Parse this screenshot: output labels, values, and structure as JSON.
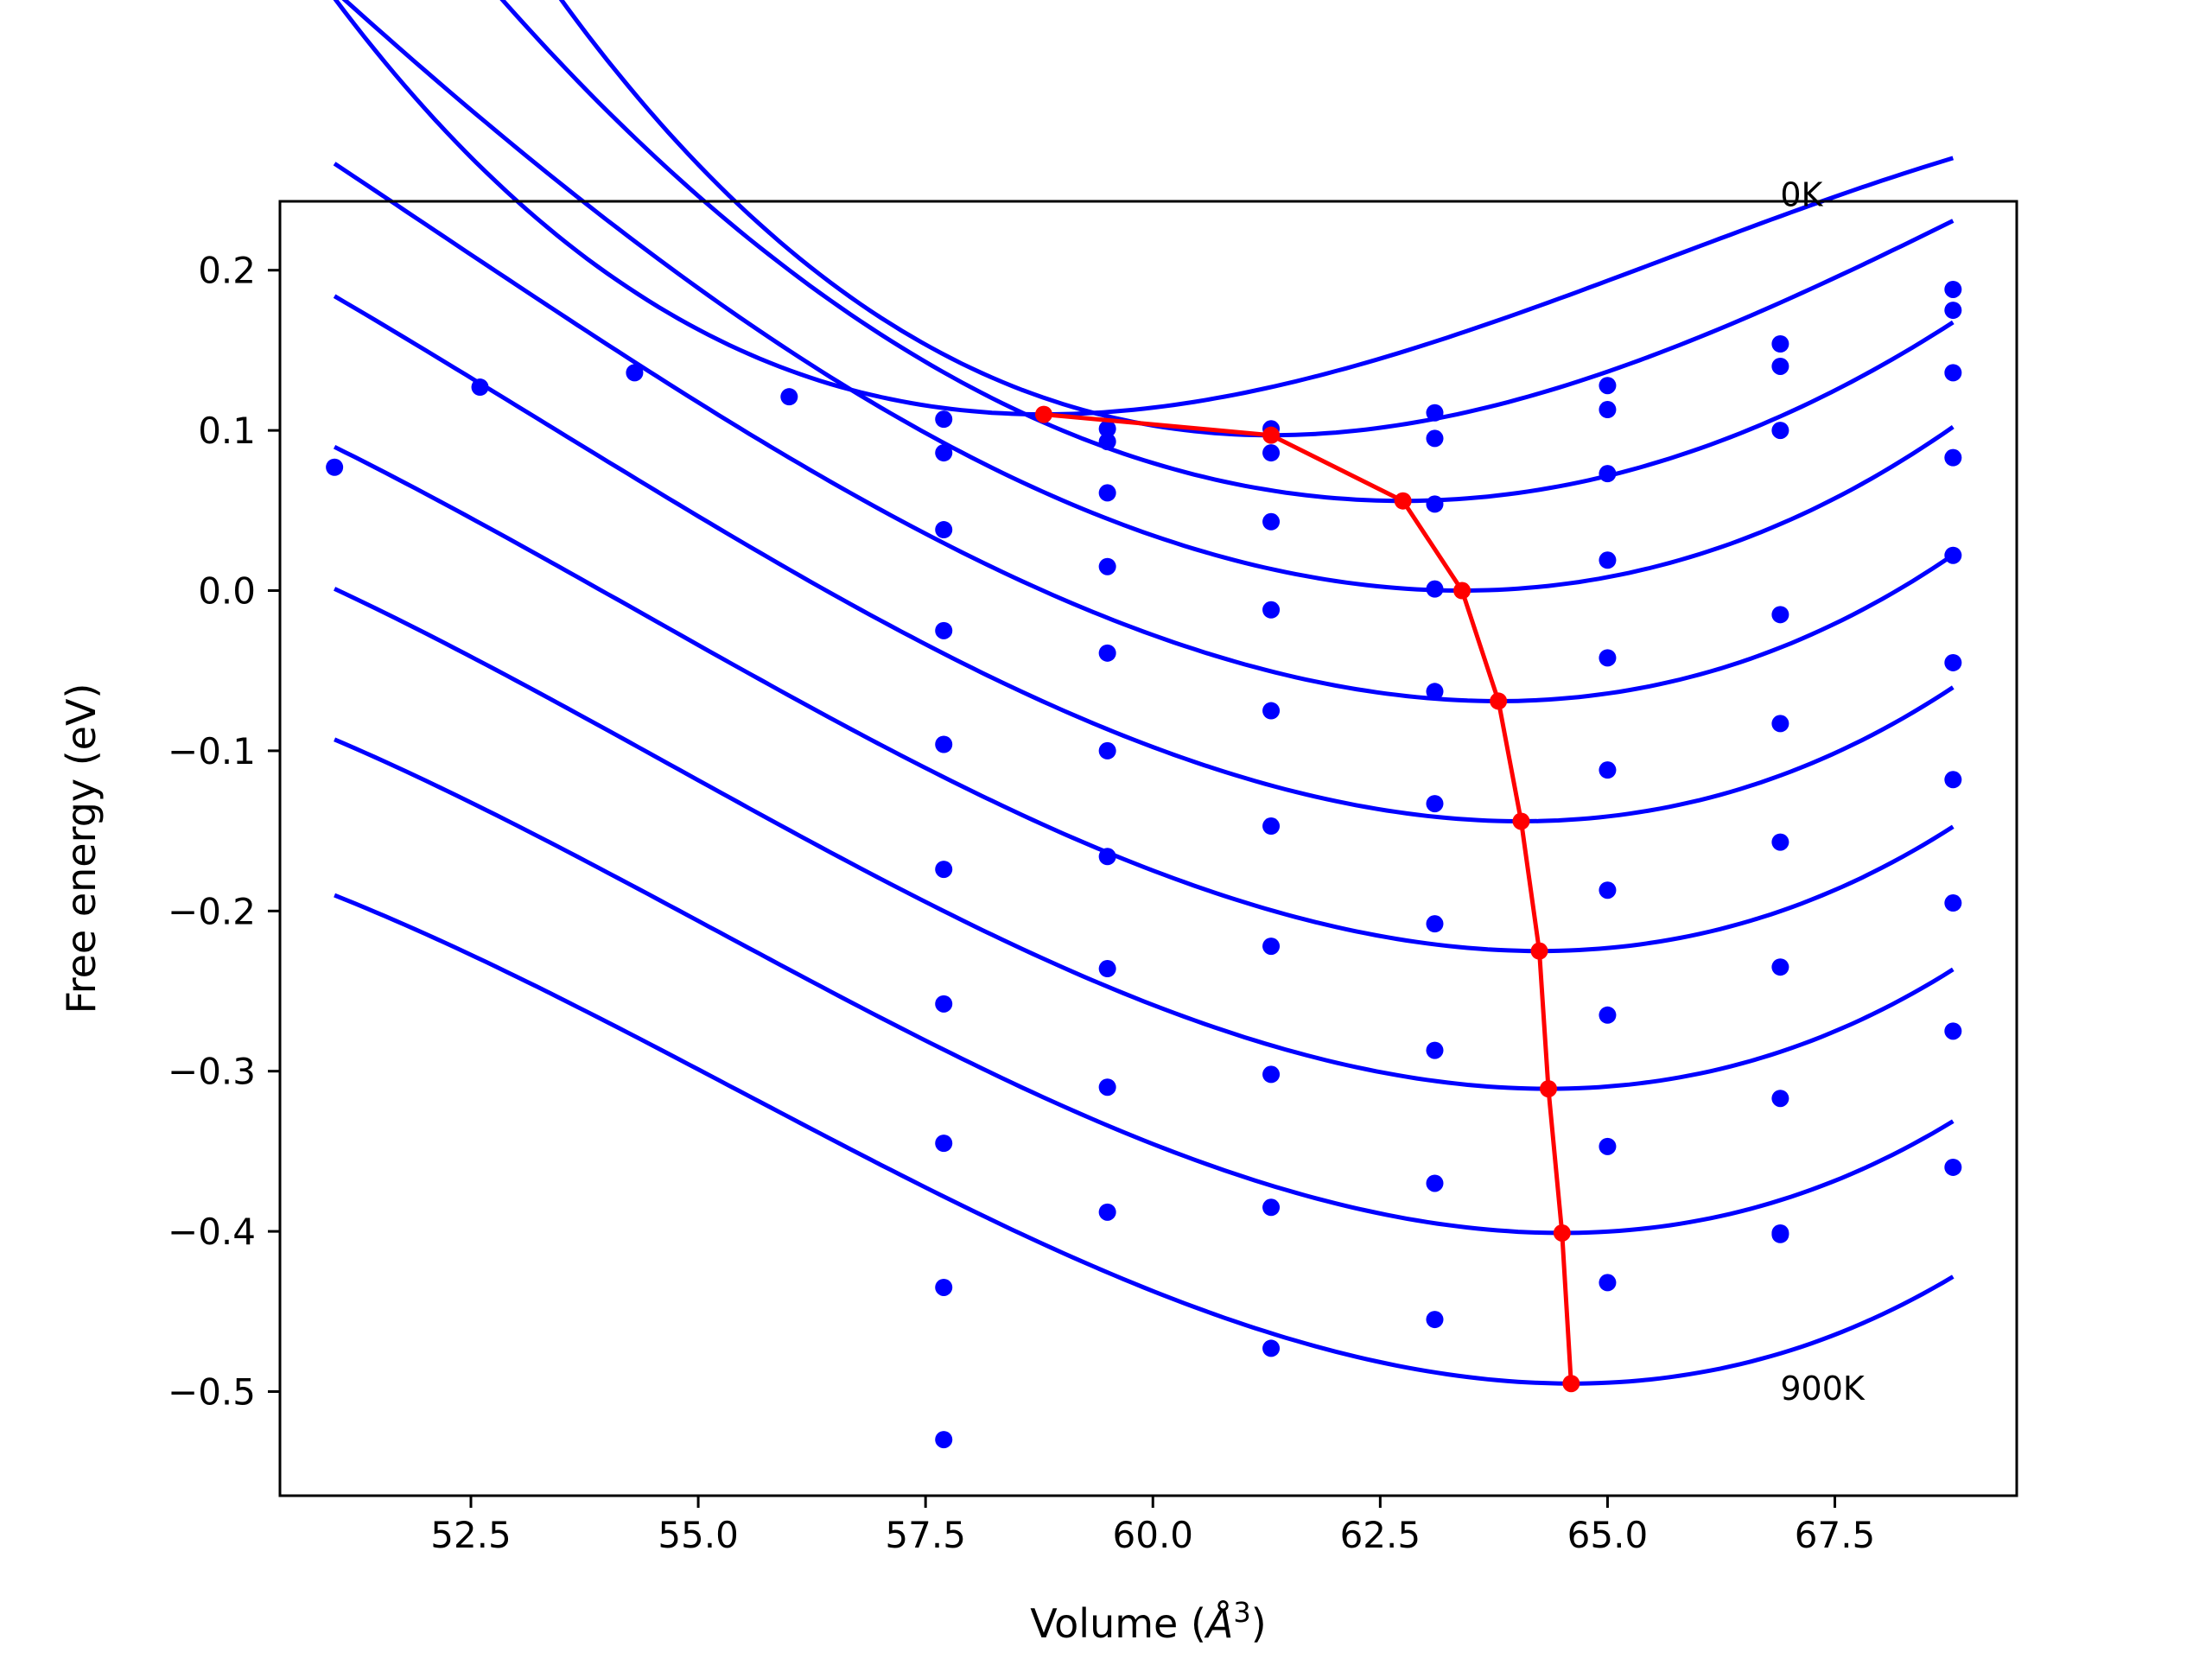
{
  "chart_data": {
    "type": "line",
    "title": "",
    "xlabel": "Volume",
    "xlabel_unit": "Å",
    "xlabel_unit_sup": "3",
    "ylabel": "Free energy (eV)",
    "xlim": [
      50.4,
      69.5
    ],
    "ylim": [
      -0.565,
      0.243
    ],
    "grid": false,
    "xticks": [
      52.5,
      55.0,
      57.5,
      60.0,
      62.5,
      65.0,
      67.5
    ],
    "xtick_labels": [
      "52.5",
      "55.0",
      "57.5",
      "60.0",
      "62.5",
      "65.0",
      "67.5"
    ],
    "yticks": [
      0.2,
      0.1,
      0.0,
      -0.1,
      -0.2,
      -0.3,
      -0.4,
      -0.5
    ],
    "ytick_labels": [
      "0.2",
      "0.1",
      "0.0",
      "−0.1",
      "−0.2",
      "−0.3",
      "−0.4",
      "−0.5"
    ],
    "colors": {
      "fit": "#0000ff",
      "points": "#0000ff",
      "minimum_path": "#ff0000",
      "axes": "#000000"
    },
    "annotations": [
      {
        "text": "0K",
        "x": 66.9,
        "y": 0.24
      },
      {
        "text": "900K",
        "x": 66.9,
        "y": -0.505
      }
    ],
    "volumes": [
      51.0,
      52.6,
      54.3,
      56.0,
      57.7,
      59.5,
      61.3,
      63.1,
      65.0,
      66.9,
      68.8
    ],
    "fit_range": [
      51.0,
      68.8
    ],
    "series": [
      {
        "fit": {
          "v0": 58.8,
          "e0": 0.11,
          "a": 0.0031,
          "b": -0.00015
        },
        "points": [
          [
            51.0,
            0.077
          ],
          [
            52.6,
            0.127
          ],
          [
            54.3,
            0.136
          ],
          [
            56.0,
            0.121
          ],
          [
            57.7,
            0.107
          ],
          [
            59.5,
            0.101
          ],
          [
            61.3,
            0.101
          ],
          [
            63.1,
            0.111
          ],
          [
            65.0,
            0.128
          ],
          [
            66.9,
            0.154
          ],
          [
            68.8,
            0.188
          ]
        ]
      },
      {
        "fit": {
          "v0": 61.3,
          "e0": 0.097,
          "a": 0.0034,
          "b": -0.000136
        },
        "points": [
          [
            57.7,
            0.086
          ],
          [
            59.5,
            0.093
          ],
          [
            61.3,
            0.086
          ],
          [
            63.1,
            0.095
          ],
          [
            65.0,
            0.113
          ],
          [
            66.9,
            0.14
          ],
          [
            68.8,
            0.175
          ]
        ]
      },
      {
        "fit": {
          "v0": 62.75,
          "e0": 0.056,
          "a": 0.0031,
          "b": -9e-06
        },
        "points": [
          [
            57.7,
            0.038
          ],
          [
            59.5,
            0.061
          ],
          [
            61.3,
            0.043
          ],
          [
            63.1,
            0.054
          ],
          [
            65.0,
            0.073
          ],
          [
            66.9,
            0.1
          ],
          [
            68.8,
            0.136
          ]
        ]
      },
      {
        "fit": {
          "v0": 63.4,
          "e0": 0.0,
          "a": 0.00318,
          "b": 6e-05
        },
        "points": [
          [
            57.7,
            -0.025
          ],
          [
            59.5,
            0.015
          ],
          [
            61.3,
            -0.012
          ],
          [
            63.1,
            0.001
          ],
          [
            65.0,
            0.019
          ],
          [
            66.9,
            -0.015
          ],
          [
            68.8,
            0.083
          ]
        ]
      },
      {
        "fit": {
          "v0": 63.8,
          "e0": -0.069,
          "a": 0.0032,
          "b": 9e-05
        },
        "points": [
          [
            57.7,
            -0.096
          ],
          [
            59.5,
            -0.039
          ],
          [
            61.3,
            -0.075
          ],
          [
            63.1,
            -0.063
          ],
          [
            65.0,
            -0.042
          ],
          [
            66.9,
            -0.083
          ],
          [
            68.8,
            0.022
          ]
        ]
      },
      {
        "fit": {
          "v0": 64.05,
          "e0": -0.144,
          "a": 0.00323,
          "b": 0.0001
        },
        "points": [
          [
            57.7,
            -0.174
          ],
          [
            59.5,
            -0.1
          ],
          [
            61.3,
            -0.147
          ],
          [
            63.1,
            -0.133
          ],
          [
            65.0,
            -0.112
          ],
          [
            66.9,
            -0.157
          ],
          [
            68.8,
            -0.045
          ]
        ]
      },
      {
        "fit": {
          "v0": 64.25,
          "e0": -0.225,
          "a": 0.00325,
          "b": 0.00011
        },
        "points": [
          [
            57.7,
            -0.258
          ],
          [
            59.5,
            -0.166
          ],
          [
            61.3,
            -0.222
          ],
          [
            63.1,
            -0.208
          ],
          [
            65.0,
            -0.187
          ],
          [
            66.9,
            -0.235
          ],
          [
            68.8,
            -0.118
          ]
        ]
      },
      {
        "fit": {
          "v0": 64.35,
          "e0": -0.311,
          "a": 0.00326,
          "b": 0.000113
        },
        "points": [
          [
            57.7,
            -0.345
          ],
          [
            59.5,
            -0.236
          ],
          [
            61.3,
            -0.302
          ],
          [
            63.1,
            -0.287
          ],
          [
            65.0,
            -0.265
          ],
          [
            66.9,
            -0.317
          ],
          [
            68.8,
            -0.195
          ]
        ]
      },
      {
        "fit": {
          "v0": 64.5,
          "e0": -0.401,
          "a": 0.00327,
          "b": 0.000117
        },
        "points": [
          [
            57.7,
            -0.435
          ],
          [
            59.5,
            -0.31
          ],
          [
            61.3,
            -0.385
          ],
          [
            63.1,
            -0.37
          ],
          [
            65.0,
            -0.347
          ],
          [
            66.9,
            -0.401
          ],
          [
            68.8,
            -0.275
          ]
        ]
      },
      {
        "fit": {
          "v0": 64.6,
          "e0": -0.495,
          "a": 0.00328,
          "b": 0.00012
        },
        "points": [
          [
            57.7,
            -0.53
          ],
          [
            59.5,
            -0.388
          ],
          [
            61.3,
            -0.473
          ],
          [
            63.1,
            -0.455
          ],
          [
            65.0,
            -0.432
          ],
          [
            66.9,
            -0.402
          ],
          [
            68.8,
            -0.36
          ]
        ]
      }
    ],
    "minimum_path": [
      [
        58.8,
        0.11
      ],
      [
        61.3,
        0.097
      ],
      [
        62.75,
        0.056
      ],
      [
        63.4,
        0.0
      ],
      [
        63.8,
        -0.069
      ],
      [
        64.05,
        -0.144
      ],
      [
        64.25,
        -0.225
      ],
      [
        64.35,
        -0.311
      ],
      [
        64.5,
        -0.401
      ],
      [
        64.6,
        -0.495
      ]
    ]
  }
}
